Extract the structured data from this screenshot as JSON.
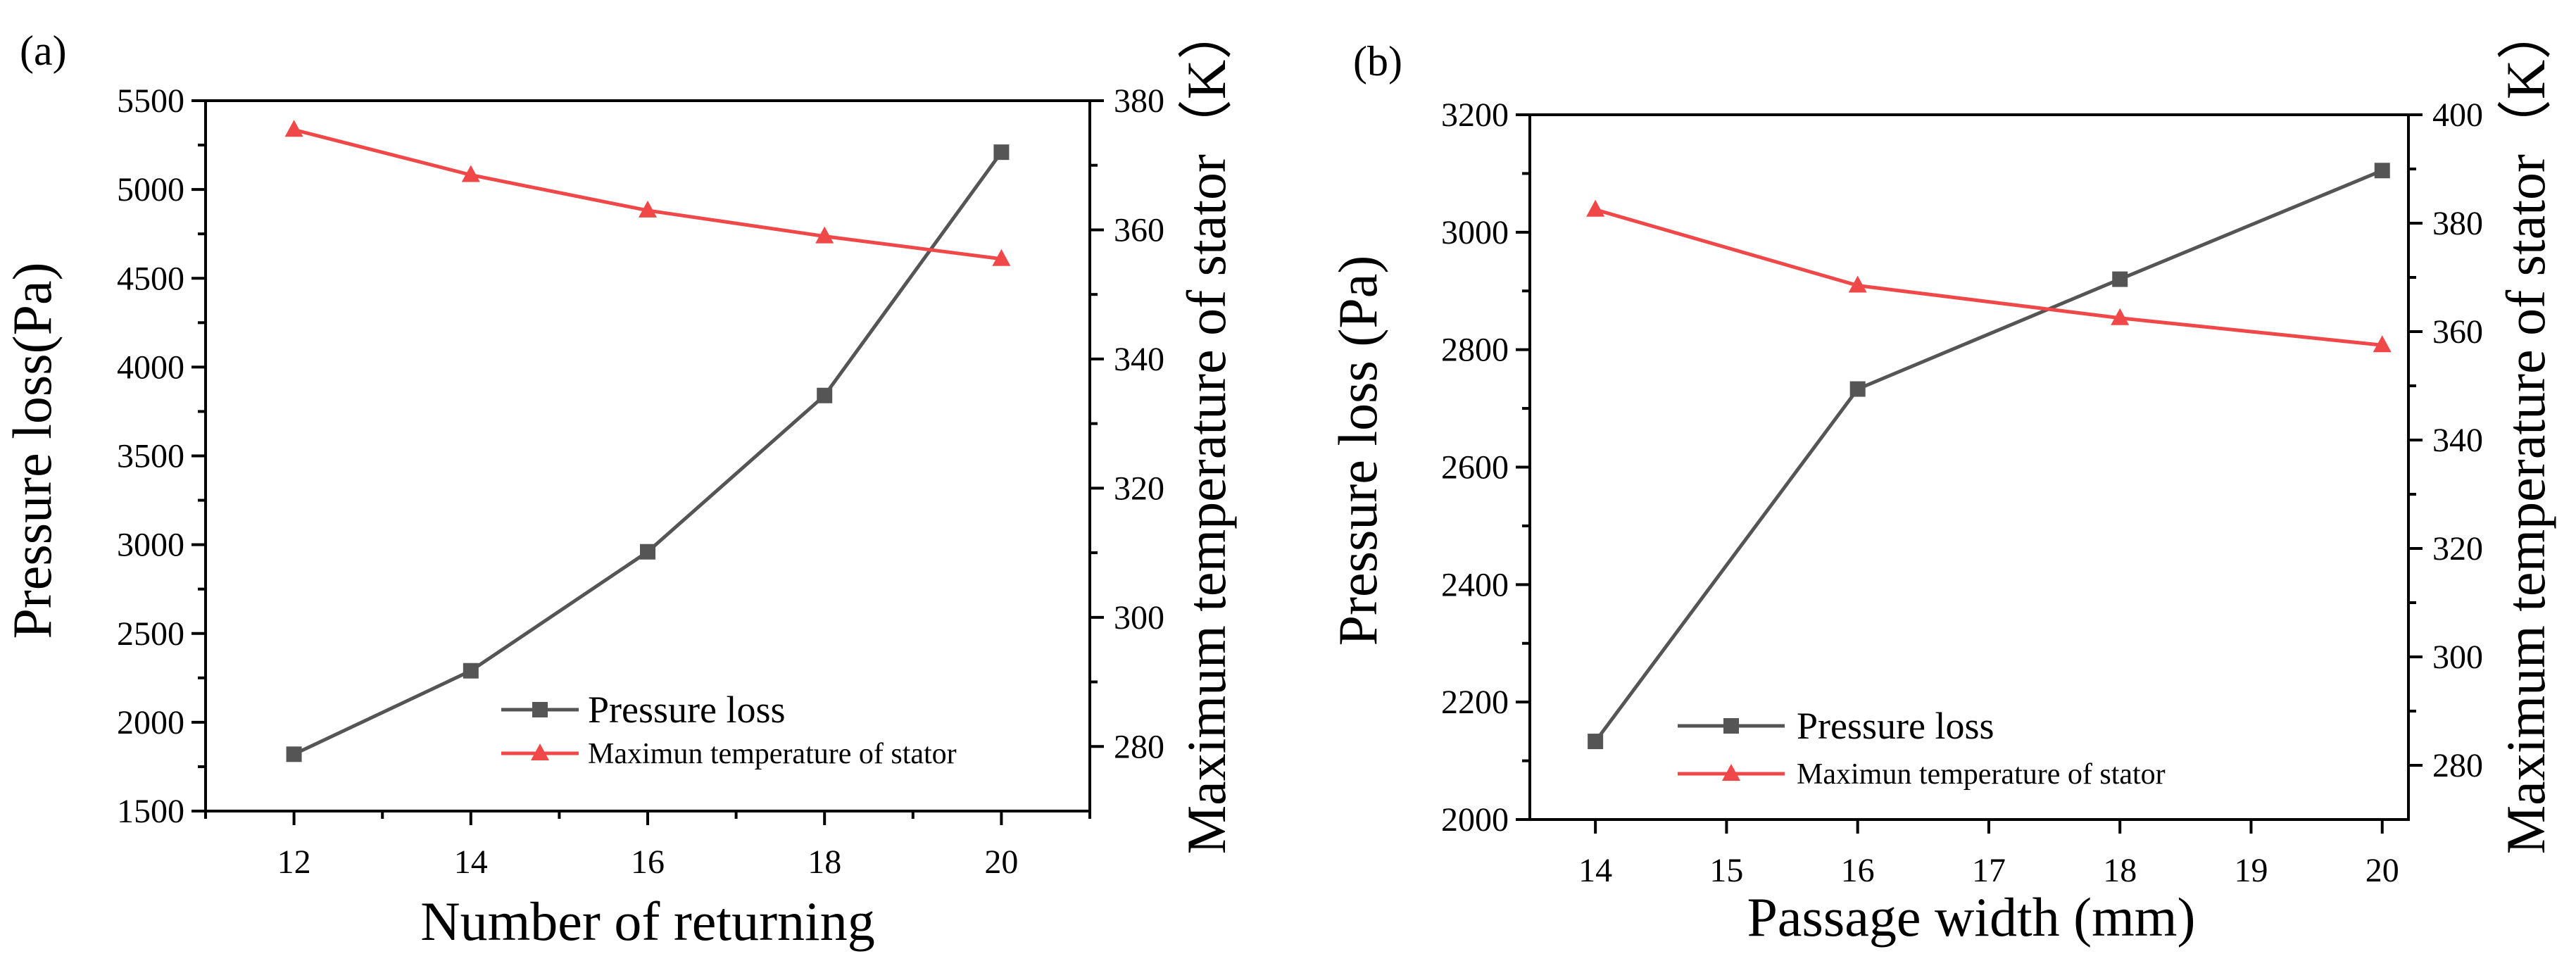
{
  "chart_data": [
    {
      "type": "line",
      "panel_label": "(a)",
      "xlabel": "Number of returning",
      "ylabel": "Pressure loss(Pa)",
      "y2label": "Maximum temperature of stator（K）",
      "x": [
        12,
        14,
        16,
        18,
        20
      ],
      "xlim": [
        11,
        21
      ],
      "xticks": [
        12,
        14,
        16,
        18,
        20
      ],
      "ylim": [
        1500,
        5500
      ],
      "yticks": [
        1500,
        2000,
        2500,
        3000,
        3500,
        4000,
        4500,
        5000,
        5500
      ],
      "y2lim": [
        270,
        380
      ],
      "y2ticks": [
        280,
        300,
        320,
        340,
        360,
        380
      ],
      "series": [
        {
          "name": "Pressure loss",
          "axis": "left",
          "color": "#555555",
          "marker": "square",
          "values": [
            1820,
            2290,
            2960,
            3840,
            5210
          ]
        },
        {
          "name": "Maximun temperature of stator",
          "axis": "right",
          "color": "#f04848",
          "marker": "triangle",
          "values": [
            375.5,
            368.5,
            363,
            359,
            355.5
          ]
        }
      ],
      "legend": "bottom-right"
    },
    {
      "type": "line",
      "panel_label": "(b)",
      "xlabel": "Passage width (mm)",
      "ylabel": "Pressure loss (Pa)",
      "y2label": "Maximum temperature of stator（K）",
      "x": [
        14,
        16,
        18,
        20
      ],
      "xlim": [
        13.5,
        20.2
      ],
      "xticks": [
        14,
        15,
        16,
        17,
        18,
        19,
        20
      ],
      "ylim": [
        2000,
        3200
      ],
      "yticks": [
        2000,
        2200,
        2400,
        2600,
        2800,
        3000,
        3200
      ],
      "y2lim": [
        270,
        400
      ],
      "y2ticks": [
        280,
        300,
        320,
        340,
        360,
        380,
        400
      ],
      "series": [
        {
          "name": "Pressure loss",
          "axis": "left",
          "color": "#555555",
          "marker": "square",
          "values": [
            2133,
            2733,
            2920,
            3105
          ]
        },
        {
          "name": "Maximun temperature of stator",
          "axis": "right",
          "color": "#f04848",
          "marker": "triangle",
          "values": [
            382.5,
            368.5,
            362.5,
            357.5
          ]
        }
      ],
      "legend": "bottom-right"
    }
  ]
}
